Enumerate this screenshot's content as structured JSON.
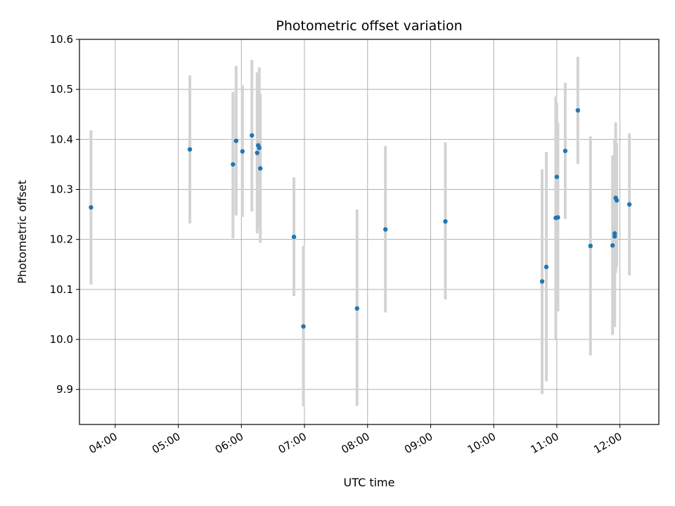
{
  "chart_data": {
    "type": "scatter",
    "title": "Photometric offset variation",
    "xlabel": "UTC time",
    "ylabel": "Photometric offset",
    "xlim": [
      "03:26",
      "12:37"
    ],
    "ylim": [
      9.83,
      10.6
    ],
    "x_ticks": [
      "04:00",
      "05:00",
      "06:00",
      "07:00",
      "08:00",
      "09:00",
      "10:00",
      "11:00",
      "12:00"
    ],
    "y_ticks": [
      "9.9",
      "10.0",
      "10.1",
      "10.2",
      "10.3",
      "10.4",
      "10.5",
      "10.6"
    ],
    "grid": true,
    "legend": "none",
    "colors": {
      "point": "#1f77b4",
      "errorbar": "#d3d3d3",
      "grid": "#b0b0b0"
    },
    "points": [
      {
        "x": "03:37",
        "y": 10.264,
        "yerr_low": 10.11,
        "yerr_high": 10.418
      },
      {
        "x": "05:11",
        "y": 10.38,
        "yerr_low": 10.232,
        "yerr_high": 10.528
      },
      {
        "x": "05:52",
        "y": 10.35,
        "yerr_low": 10.202,
        "yerr_high": 10.495
      },
      {
        "x": "05:55",
        "y": 10.397,
        "yerr_low": 10.248,
        "yerr_high": 10.547
      },
      {
        "x": "06:01",
        "y": 10.376,
        "yerr_low": 10.245,
        "yerr_high": 10.508
      },
      {
        "x": "06:10",
        "y": 10.408,
        "yerr_low": 10.256,
        "yerr_high": 10.559
      },
      {
        "x": "06:15",
        "y": 10.373,
        "yerr_low": 10.212,
        "yerr_high": 10.534
      },
      {
        "x": "06:16",
        "y": 10.388,
        "yerr_low": 10.231,
        "yerr_high": 10.527
      },
      {
        "x": "06:17",
        "y": 10.383,
        "yerr_low": 10.222,
        "yerr_high": 10.544
      },
      {
        "x": "06:18",
        "y": 10.342,
        "yerr_low": 10.193,
        "yerr_high": 10.491
      },
      {
        "x": "06:50",
        "y": 10.205,
        "yerr_low": 10.087,
        "yerr_high": 10.324
      },
      {
        "x": "06:59",
        "y": 10.026,
        "yerr_low": 9.866,
        "yerr_high": 10.187
      },
      {
        "x": "07:50",
        "y": 10.062,
        "yerr_low": 9.867,
        "yerr_high": 10.26
      },
      {
        "x": "08:17",
        "y": 10.22,
        "yerr_low": 10.054,
        "yerr_high": 10.387
      },
      {
        "x": "09:14",
        "y": 10.236,
        "yerr_low": 10.08,
        "yerr_high": 10.394
      },
      {
        "x": "10:46",
        "y": 10.116,
        "yerr_low": 9.891,
        "yerr_high": 10.34
      },
      {
        "x": "10:50",
        "y": 10.145,
        "yerr_low": 9.916,
        "yerr_high": 10.375
      },
      {
        "x": "10:59",
        "y": 10.243,
        "yerr_low": 10.001,
        "yerr_high": 10.486
      },
      {
        "x": "11:00",
        "y": 10.325,
        "yerr_low": 10.177,
        "yerr_high": 10.473
      },
      {
        "x": "11:01",
        "y": 10.244,
        "yerr_low": 10.056,
        "yerr_high": 10.433
      },
      {
        "x": "11:08",
        "y": 10.377,
        "yerr_low": 10.241,
        "yerr_high": 10.513
      },
      {
        "x": "11:20",
        "y": 10.458,
        "yerr_low": 10.351,
        "yerr_high": 10.565
      },
      {
        "x": "11:32",
        "y": 10.187,
        "yerr_low": 9.968,
        "yerr_high": 10.406
      },
      {
        "x": "11:53",
        "y": 10.188,
        "yerr_low": 10.009,
        "yerr_high": 10.368
      },
      {
        "x": "11:55",
        "y": 10.206,
        "yerr_low": 10.055,
        "yerr_high": 10.357
      },
      {
        "x": "11:55",
        "y": 10.212,
        "yerr_low": 10.025,
        "yerr_high": 10.4
      },
      {
        "x": "11:56",
        "y": 10.283,
        "yerr_low": 10.133,
        "yerr_high": 10.434
      },
      {
        "x": "11:57",
        "y": 10.278,
        "yerr_low": 10.144,
        "yerr_high": 10.393
      },
      {
        "x": "12:09",
        "y": 10.27,
        "yerr_low": 10.128,
        "yerr_high": 10.412
      }
    ]
  }
}
